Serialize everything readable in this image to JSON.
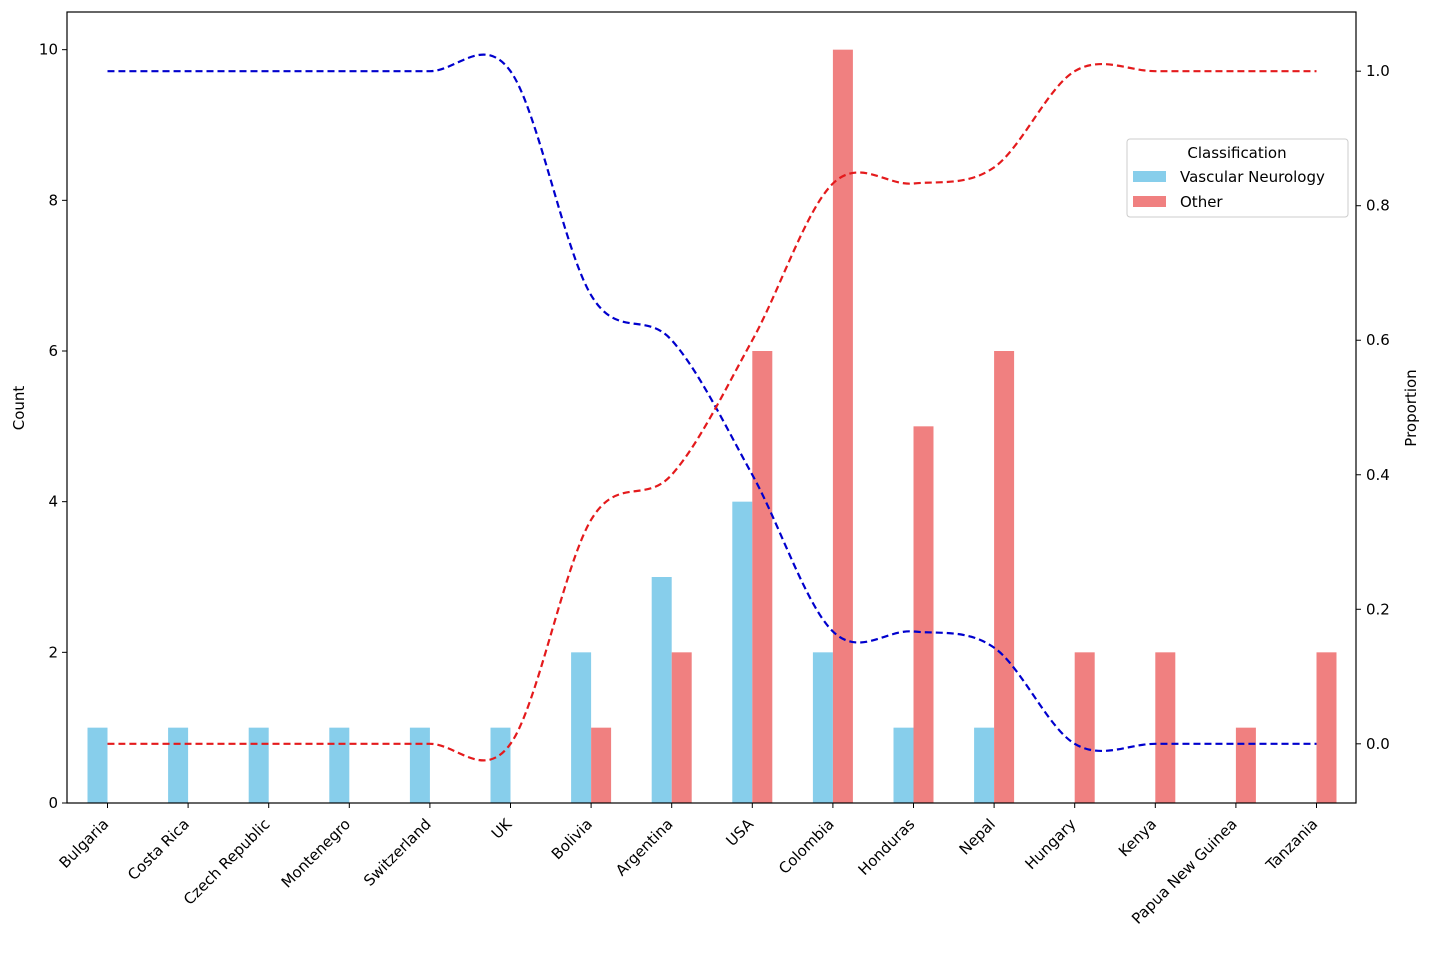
{
  "chart_data": {
    "type": "bar",
    "categories": [
      "Bulgaria",
      "Costa Rica",
      "Czech Republic",
      "Montenegro",
      "Switzerland",
      "UK",
      "Bolivia",
      "Argentina",
      "USA",
      "Colombia",
      "Honduras",
      "Nepal",
      "Hungary",
      "Kenya",
      "Papua New Guinea",
      "Tanzania"
    ],
    "series": [
      {
        "name": "Vascular Neurology",
        "color": "#87ceeb",
        "values": [
          1,
          1,
          1,
          1,
          1,
          1,
          2,
          3,
          4,
          2,
          1,
          1,
          0,
          0,
          0,
          0
        ]
      },
      {
        "name": "Other",
        "color": "#f08080",
        "values": [
          0,
          0,
          0,
          0,
          0,
          0,
          1,
          2,
          6,
          10,
          5,
          6,
          2,
          2,
          1,
          2
        ]
      }
    ],
    "proportion_lines": [
      {
        "name": "Vascular Neurology proportion",
        "color": "#0000cd",
        "values": [
          1,
          1,
          1,
          1,
          1,
          1,
          0.667,
          0.6,
          0.4,
          0.167,
          0.167,
          0.143,
          0,
          0,
          0,
          0
        ]
      },
      {
        "name": "Other proportion",
        "color": "#e41a1c",
        "values": [
          0,
          0,
          0,
          0,
          0,
          0,
          0.333,
          0.4,
          0.6,
          0.833,
          0.833,
          0.857,
          1,
          1,
          1,
          1
        ]
      }
    ],
    "ylabel_left": "Count",
    "ylabel_right": "Proportion",
    "ylim_left": [
      0,
      10.5
    ],
    "ylim_right": [
      -0.088,
      1.088
    ],
    "yticks_left": [
      "0",
      "2",
      "4",
      "6",
      "8",
      "10"
    ],
    "yticks_right": [
      "0.0",
      "0.2",
      "0.4",
      "0.6",
      "0.8",
      "1.0"
    ],
    "legend": {
      "title": "Classification",
      "placement": "upper-right"
    }
  }
}
